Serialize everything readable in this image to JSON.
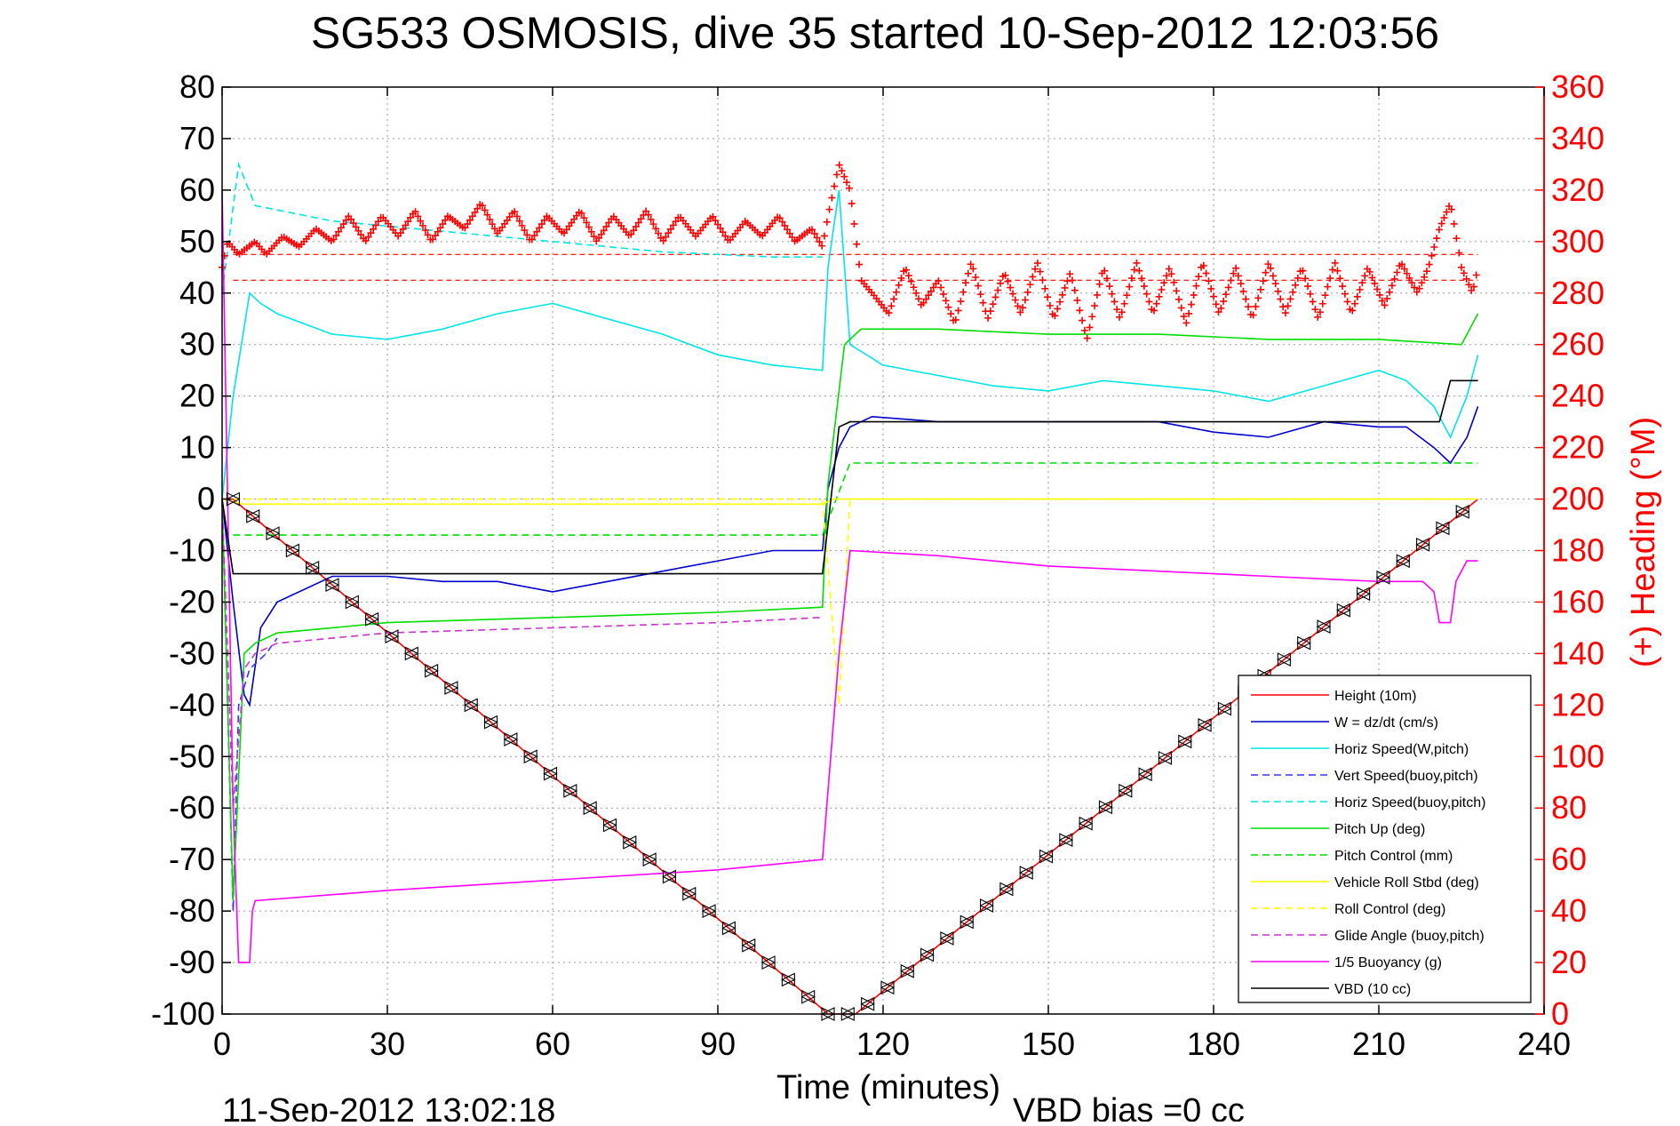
{
  "figure": {
    "title": "SG533 OSMOSIS, dive 35 started 10-Sep-2012 12:03:56",
    "timestamp": "11-Sep-2012 13:02:18",
    "vbd_bias": "VBD bias =0 cc"
  },
  "chart_data": {
    "type": "line",
    "title": "SG533 OSMOSIS, dive 35 started 10-Sep-2012 12:03:56",
    "xlabel": "Time (minutes)",
    "ylabel": "",
    "y2label": "(+) Heading (°M)",
    "xlim": [
      0,
      240
    ],
    "ylim": [
      -100,
      80
    ],
    "y2lim": [
      0,
      360
    ],
    "xticks": [
      0,
      30,
      60,
      90,
      120,
      150,
      180,
      210,
      240
    ],
    "yticks": [
      -100,
      -90,
      -80,
      -70,
      -60,
      -50,
      -40,
      -30,
      -20,
      -10,
      0,
      10,
      20,
      30,
      40,
      50,
      60,
      70,
      80
    ],
    "y2ticks": [
      0,
      20,
      40,
      60,
      80,
      100,
      120,
      140,
      160,
      180,
      200,
      220,
      240,
      260,
      280,
      300,
      320,
      340,
      360
    ],
    "grid": true,
    "legend_position": "bottom-right",
    "colors": {
      "height": "#ff0000",
      "w": "#0000cc",
      "horiz_speed": "#00e5e5",
      "vert_speed_model": "#3333ff",
      "pitch": "#00dd00",
      "roll": "#ffff00",
      "glide": "#cc33cc",
      "buoyancy": "#ff00ff",
      "vbd": "#000000",
      "heading": "#ff0000"
    },
    "series": [
      {
        "key": "height",
        "name": "Height (10m)",
        "color": "#ff0000",
        "dash": "",
        "x": [
          0,
          2,
          110,
          115,
          228
        ],
        "y": [
          0,
          0,
          -100,
          -100,
          0
        ]
      },
      {
        "key": "w",
        "name": "W = dz/dt (cm/s)",
        "color": "#0000cc",
        "dash": "",
        "x": [
          0,
          2,
          4,
          5,
          7,
          10,
          20,
          30,
          40,
          50,
          60,
          70,
          80,
          90,
          100,
          109,
          110,
          112,
          114,
          118,
          130,
          150,
          170,
          180,
          190,
          200,
          210,
          215,
          220,
          223,
          226,
          228
        ],
        "y": [
          0,
          -20,
          -38,
          -40,
          -25,
          -20,
          -15,
          -15,
          -16,
          -16,
          -18,
          -16,
          -14,
          -12,
          -10,
          -10,
          2,
          10,
          14,
          16,
          15,
          15,
          15,
          13,
          12,
          15,
          14,
          14,
          10,
          7,
          12,
          18
        ]
      },
      {
        "key": "horiz_speed",
        "name": "Horiz Speed(W,pitch)",
        "color": "#00e5e5",
        "dash": "",
        "x": [
          0,
          2,
          5,
          7,
          10,
          20,
          30,
          40,
          50,
          60,
          70,
          80,
          90,
          100,
          109,
          110,
          112,
          114,
          120,
          130,
          140,
          150,
          160,
          170,
          180,
          190,
          200,
          210,
          215,
          220,
          223,
          226,
          228
        ],
        "y": [
          0,
          20,
          40,
          38,
          36,
          32,
          31,
          33,
          36,
          38,
          35,
          32,
          28,
          26,
          25,
          45,
          60,
          30,
          26,
          24,
          22,
          21,
          23,
          22,
          21,
          19,
          22,
          25,
          23,
          18,
          12,
          20,
          28
        ]
      },
      {
        "key": "vert_speed_model",
        "name": "Vert Speed(buoy,pitch)",
        "color": "#3333ff",
        "dash": "8,5",
        "x": [
          0,
          2,
          3,
          5,
          8,
          10
        ],
        "y": [
          0,
          -80,
          -40,
          -33,
          -30,
          -27
        ]
      },
      {
        "key": "horiz_speed_model",
        "name": "Horiz Speed(buoy,pitch)",
        "color": "#00e5e5",
        "dash": "8,5",
        "x": [
          0,
          3,
          6,
          20,
          40,
          60,
          80,
          100,
          109
        ],
        "y": [
          40,
          65,
          57,
          54,
          52,
          50,
          48,
          47,
          47
        ]
      },
      {
        "key": "pitch",
        "name": "Pitch Up (deg)",
        "color": "#00dd00",
        "dash": "",
        "x": [
          0,
          2,
          4,
          6,
          10,
          30,
          60,
          90,
          109,
          110,
          113,
          116,
          130,
          150,
          170,
          190,
          210,
          225,
          228
        ],
        "y": [
          0,
          -78,
          -30,
          -28,
          -26,
          -24,
          -23,
          -22,
          -21,
          3,
          30,
          33,
          33,
          32,
          32,
          31,
          31,
          30,
          36
        ]
      },
      {
        "key": "pitch_control",
        "name": "Pitch Control (mm)",
        "color": "#00dd00",
        "dash": "8,5",
        "x": [
          2,
          6,
          20,
          40,
          60,
          80,
          100,
          109,
          114,
          140,
          170,
          200,
          228
        ],
        "y": [
          -7,
          -7,
          -7,
          -7,
          -7,
          -7,
          -7,
          -7,
          7,
          7,
          7,
          7,
          7
        ]
      },
      {
        "key": "roll",
        "name": "Vehicle Roll Stbd (deg)",
        "color": "#ffff00",
        "dash": "",
        "x": [
          0,
          4,
          8,
          40,
          80,
          109,
          111,
          114,
          160,
          228
        ],
        "y": [
          0,
          -1,
          -1,
          -1,
          -1,
          -1,
          0,
          0,
          0,
          0
        ]
      },
      {
        "key": "roll_control",
        "name": "Roll Control (deg)",
        "color": "#ffff00",
        "dash": "8,5",
        "x": [
          0,
          5,
          60,
          109,
          112,
          114,
          170,
          228
        ],
        "y": [
          0,
          0,
          0,
          0,
          -40,
          0,
          0,
          0
        ]
      },
      {
        "key": "glide",
        "name": "Glide Angle (buoy,pitch)",
        "color": "#cc33cc",
        "dash": "8,5",
        "x": [
          0,
          2,
          4,
          6,
          10,
          30,
          60,
          90,
          109
        ],
        "y": [
          0,
          -60,
          -33,
          -30,
          -28,
          -26,
          -25,
          -24,
          -23
        ]
      },
      {
        "key": "buoyancy",
        "name": "1/5 Buoyancy (g)",
        "color": "#ff00ff",
        "dash": "",
        "x": [
          0,
          2,
          3,
          5,
          5.5,
          6,
          30,
          60,
          90,
          109,
          112,
          114,
          130,
          150,
          170,
          190,
          210,
          218,
          220,
          221,
          223,
          224,
          226,
          228
        ],
        "y": [
          60,
          -60,
          -90,
          -90,
          -80,
          -78,
          -76,
          -74,
          -72,
          -70,
          -30,
          -10,
          -11,
          -13,
          -14,
          -15,
          -16,
          -16,
          -18,
          -24,
          -24,
          -16,
          -12,
          -12
        ]
      },
      {
        "key": "vbd",
        "name": "VBD (10 cc)",
        "color": "#000000",
        "dash": "",
        "x": [
          0,
          2,
          109,
          112,
          114,
          120,
          170,
          180,
          221,
          223,
          228
        ],
        "y": [
          0,
          -14.5,
          -14.5,
          14,
          15,
          15,
          15,
          15,
          15,
          23,
          23
        ]
      }
    ],
    "heading": {
      "name": "(+) Heading (°M)",
      "ref_lines": [
        295,
        285
      ],
      "x": [
        0,
        1,
        3,
        6,
        8,
        11,
        14,
        17,
        20,
        23,
        26,
        29,
        32,
        35,
        38,
        41,
        44,
        47,
        50,
        53,
        56,
        59,
        62,
        65,
        68,
        71,
        74,
        77,
        80,
        83,
        86,
        89,
        92,
        95,
        98,
        101,
        104,
        107,
        109,
        110,
        112,
        114,
        116,
        118,
        121,
        124,
        127,
        130,
        133,
        136,
        139,
        142,
        145,
        148,
        151,
        154,
        157,
        160,
        163,
        166,
        169,
        172,
        175,
        178,
        181,
        184,
        187,
        190,
        193,
        196,
        199,
        202,
        205,
        208,
        211,
        214,
        217,
        219,
        221,
        223,
        225,
        227,
        228
      ],
      "y": [
        290,
        300,
        295,
        300,
        295,
        302,
        298,
        305,
        300,
        310,
        300,
        310,
        302,
        312,
        300,
        310,
        305,
        315,
        303,
        312,
        300,
        310,
        303,
        312,
        300,
        310,
        302,
        312,
        300,
        310,
        302,
        310,
        300,
        308,
        302,
        310,
        300,
        305,
        298,
        310,
        330,
        320,
        285,
        280,
        272,
        290,
        275,
        285,
        268,
        292,
        270,
        288,
        272,
        292,
        270,
        288,
        262,
        290,
        270,
        292,
        272,
        290,
        268,
        292,
        272,
        290,
        270,
        292,
        272,
        290,
        270,
        292,
        272,
        290,
        275,
        292,
        280,
        290,
        305,
        315,
        290,
        280,
        290
      ]
    }
  }
}
